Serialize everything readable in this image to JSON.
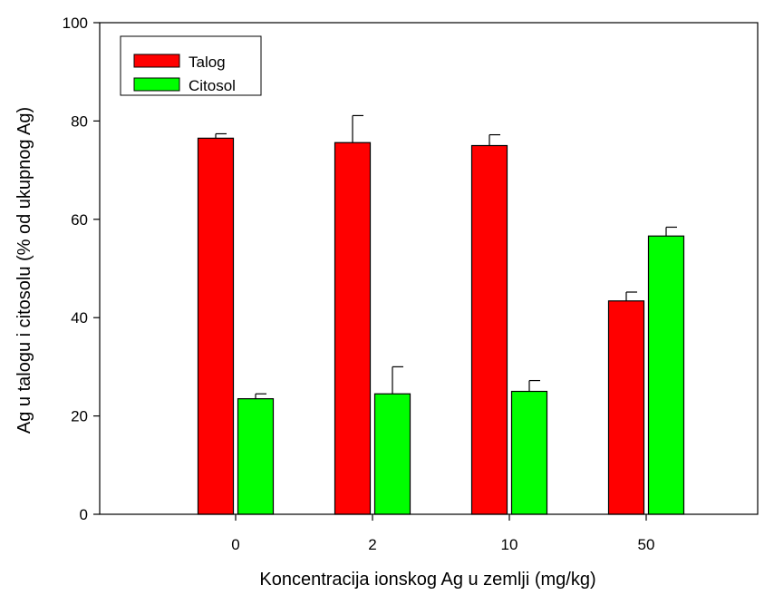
{
  "chart_data": {
    "type": "bar",
    "xlabel": "Koncentracija ionskog Ag u zemlji (mg/kg)",
    "ylabel": "Ag u talogu i citosolu (% od ukupnog Ag)",
    "categories": [
      "0",
      "2",
      "10",
      "50"
    ],
    "ylim": [
      0,
      100
    ],
    "yticks": [
      "0",
      "20",
      "40",
      "60",
      "80",
      "100"
    ],
    "series": [
      {
        "name": "Talog",
        "color": "#ff0000",
        "values": [
          76.5,
          75.6,
          75.0,
          43.4
        ],
        "errors": [
          0.9,
          5.5,
          2.2,
          1.8
        ]
      },
      {
        "name": "Citosol",
        "color": "#00ff00",
        "values": [
          23.5,
          24.5,
          25.0,
          56.6
        ],
        "errors": [
          1.0,
          5.5,
          2.2,
          1.8
        ]
      }
    ],
    "legend_position": "top-left",
    "grid": false
  }
}
